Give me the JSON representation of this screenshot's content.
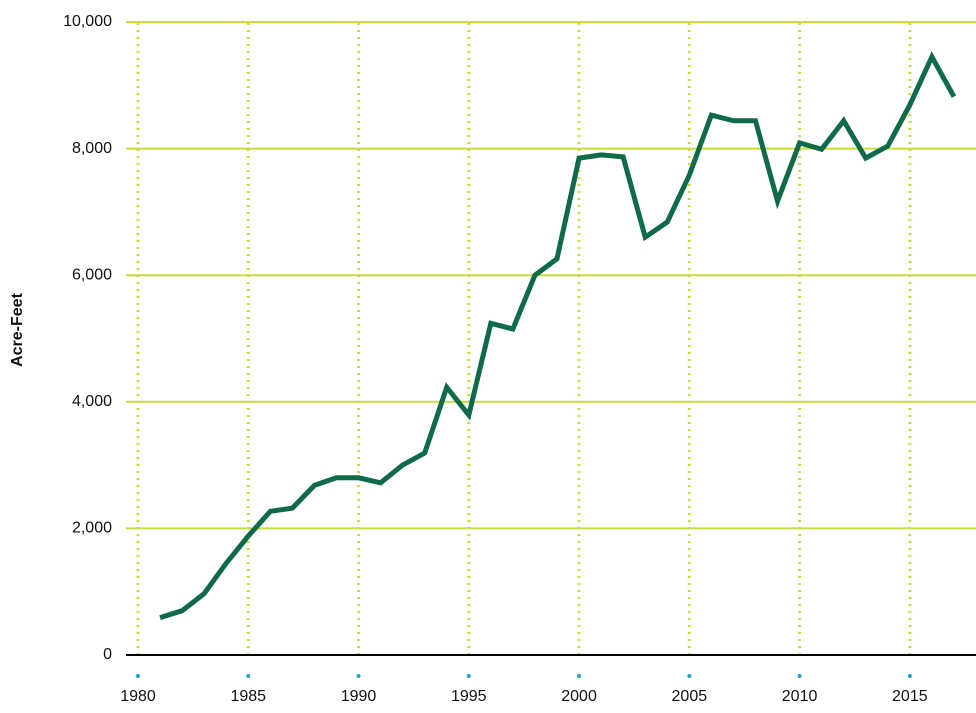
{
  "chart_data": {
    "type": "line",
    "y_label": "Acre-Feet",
    "x": [
      1981,
      1982,
      1983,
      1984,
      1985,
      1986,
      1987,
      1988,
      1989,
      1990,
      1991,
      1992,
      1993,
      1994,
      1995,
      1996,
      1997,
      1998,
      1999,
      2000,
      2001,
      2002,
      2003,
      2004,
      2005,
      2006,
      2007,
      2008,
      2009,
      2010,
      2011,
      2012,
      2013,
      2014,
      2015,
      2016,
      2017
    ],
    "series": [
      {
        "name": "Acre-Feet",
        "color": "#0f6b47",
        "values": [
          590,
          700,
          970,
          1450,
          1880,
          2270,
          2320,
          2680,
          2800,
          2800,
          2720,
          3000,
          3190,
          4230,
          3790,
          5240,
          5150,
          6000,
          6260,
          7850,
          7900,
          7870,
          6600,
          6840,
          7580,
          8530,
          8440,
          8440,
          7170,
          8090,
          7990,
          8440,
          7850,
          8040,
          8690,
          9450,
          8820
        ]
      }
    ],
    "xlim": [
      1980,
      2018
    ],
    "xticks": [
      1980,
      1985,
      1990,
      1995,
      2000,
      2005,
      2010,
      2015
    ],
    "ylim": [
      0,
      10000
    ],
    "yticks": [
      0,
      {
        "value": 2000,
        "label": "2,000"
      },
      {
        "value": 4000,
        "label": "4,000"
      },
      {
        "value": 6000,
        "label": "6,000"
      },
      {
        "value": 8000,
        "label": "8,000"
      },
      {
        "value": 10000,
        "label": "10,000"
      }
    ],
    "grid": true,
    "grid_color": "#c9dc3c",
    "axis_color": "#000000",
    "tick_dot_color": "#1fa3c8"
  }
}
